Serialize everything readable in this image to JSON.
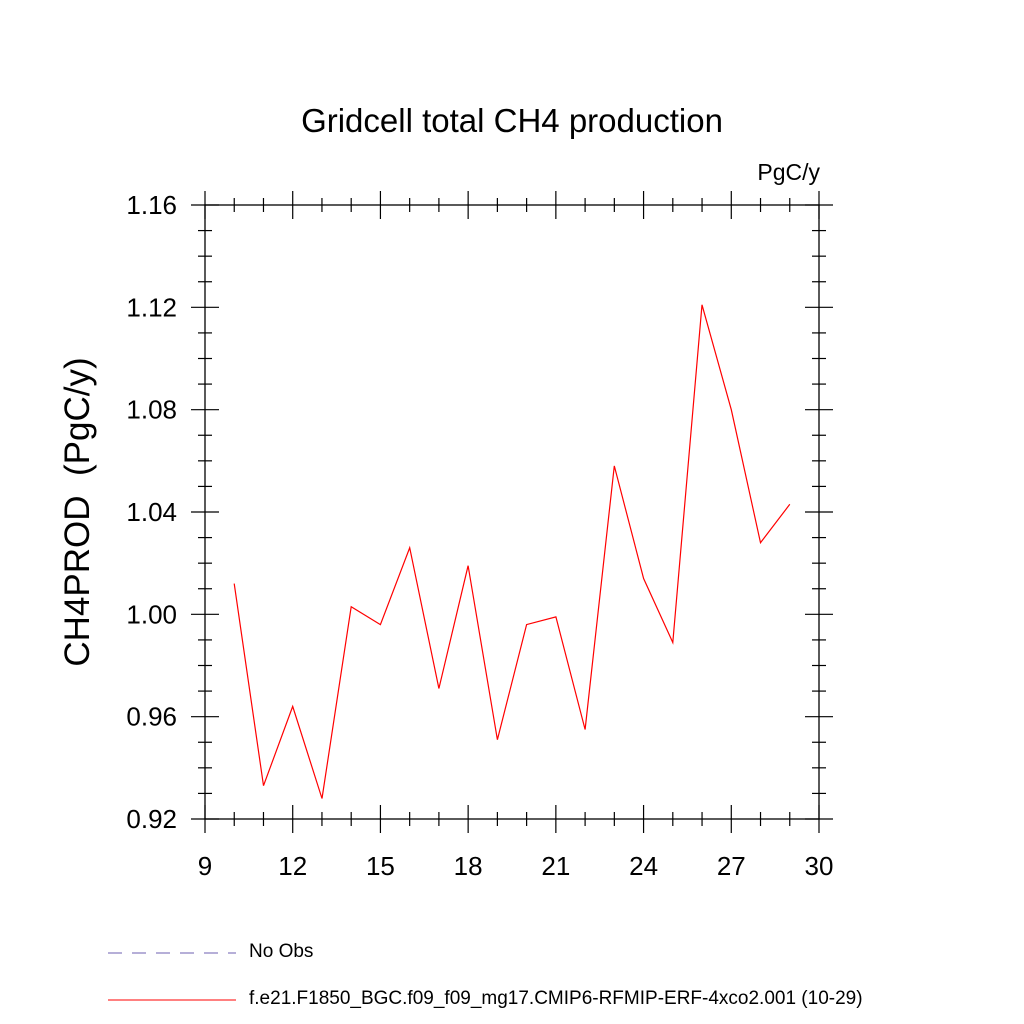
{
  "chart_data": {
    "type": "line",
    "title": "Gridcell total CH4 production",
    "units": "PgC/y",
    "ylabel": "CH4PROD  (PgC/y)",
    "xlabel": "",
    "xlim": [
      9,
      30
    ],
    "ylim": [
      0.92,
      1.16
    ],
    "x_ticks": [
      9,
      12,
      15,
      18,
      21,
      24,
      27,
      30
    ],
    "x_tick_labels": [
      "9",
      "12",
      "15",
      "18",
      "21",
      "24",
      "27",
      "30"
    ],
    "y_ticks": [
      0.92,
      0.96,
      1.0,
      1.04,
      1.08,
      1.12,
      1.16
    ],
    "y_tick_labels": [
      "0.92",
      "0.96",
      "1.00",
      "1.04",
      "1.08",
      "1.12",
      "1.16"
    ],
    "grid": false,
    "legend_position": "bottom",
    "series": [
      {
        "name": "f.e21.F1850_BGC.f09_f09_mg17.CMIP6-RFMIP-ERF-4xco2.001 (10-29)",
        "color": "#ff0000",
        "style": "solid",
        "x": [
          10,
          11,
          12,
          13,
          14,
          15,
          16,
          17,
          18,
          19,
          20,
          21,
          22,
          23,
          24,
          25,
          26,
          27,
          28,
          29
        ],
        "values": [
          1.012,
          0.933,
          0.964,
          0.928,
          1.003,
          0.996,
          1.026,
          0.971,
          1.019,
          0.951,
          0.996,
          0.999,
          0.955,
          1.058,
          1.014,
          0.989,
          1.121,
          1.08,
          1.028,
          1.043
        ]
      }
    ],
    "legend": [
      {
        "label": "No Obs",
        "color": "#8a7fc0",
        "style": "dashed"
      },
      {
        "label": "f.e21.F1850_BGC.f09_f09_mg17.CMIP6-RFMIP-ERF-4xco2.001 (10-29)",
        "color": "#ff0000",
        "style": "solid"
      }
    ]
  }
}
